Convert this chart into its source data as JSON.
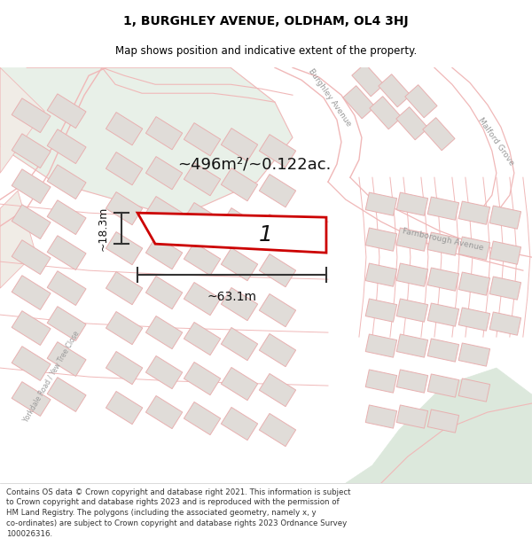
{
  "title_line1": "1, BURGHLEY AVENUE, OLDHAM, OL4 3HJ",
  "title_line2": "Map shows position and indicative extent of the property.",
  "area_label": "~496m²/~0.122ac.",
  "plot_number": "1",
  "dim_width": "~63.1m",
  "dim_height": "~18.3m",
  "footer_text": "Contains OS data © Crown copyright and database right 2021. This information is subject to Crown copyright and database rights 2023 and is reproduced with the permission of HM Land Registry. The polygons (including the associated geometry, namely x, y co-ordinates) are subject to Crown copyright and database rights 2023 Ordnance Survey 100026316.",
  "map_bg": "#f7f5f2",
  "road_outline": "#f0b8b8",
  "building_fill": "#e0dcd8",
  "building_stroke": "#e8b0b0",
  "plot_outline_color": "#cc0000",
  "green_area_color": "#e8f0e8",
  "green_area_color2": "#dce8dc",
  "street_label_color": "#999999",
  "title_color": "#000000",
  "footer_color": "#333333",
  "dim_color": "#333333",
  "title_fontsize": 10,
  "subtitle_fontsize": 8.5,
  "area_fontsize": 13,
  "footer_fontsize": 6.2
}
